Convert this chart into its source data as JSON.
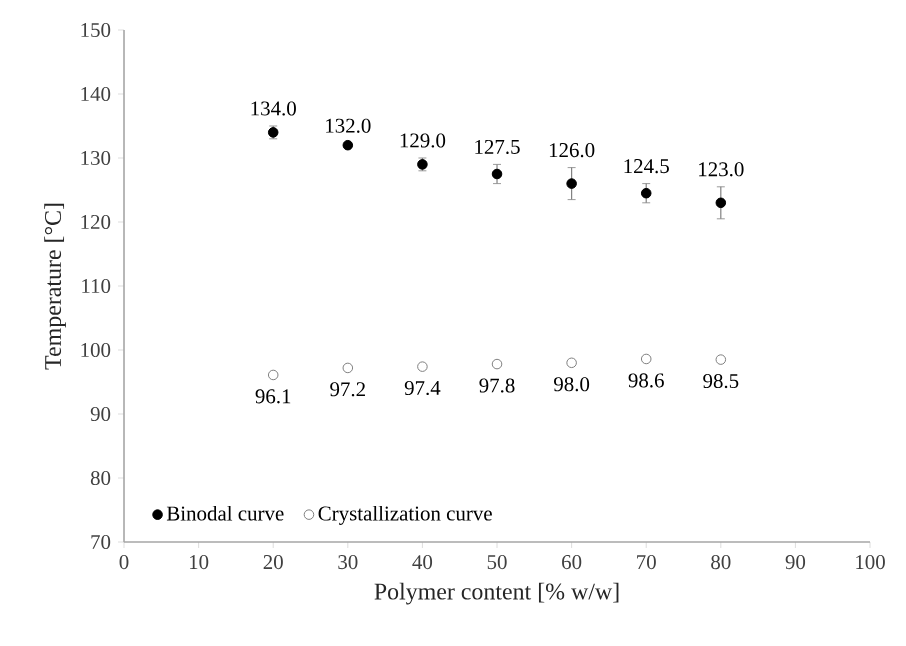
{
  "chart_data": {
    "type": "scatter",
    "xlabel": "Polymer content [% w/w]",
    "ylabel": "Temperature [°C]",
    "x": [
      20,
      30,
      40,
      50,
      60,
      70,
      80
    ],
    "series": [
      {
        "name": "Binodal curve",
        "color": "#000000",
        "values": [
          134.0,
          132.0,
          129.0,
          127.5,
          126.0,
          124.5,
          123.0
        ],
        "value_labels": [
          "134.0",
          "132.0",
          "129.0",
          "127.5",
          "126.0",
          "124.5",
          "123.0"
        ],
        "errors": [
          1,
          0.3,
          1,
          1.5,
          2.5,
          1.5,
          2.5
        ]
      },
      {
        "name": "Crystallization curve",
        "color": "#7f7f7f",
        "values": [
          96.1,
          97.2,
          97.4,
          97.8,
          98.0,
          98.6,
          98.5
        ],
        "value_labels": [
          "96.1",
          "97.2",
          "97.4",
          "97.8",
          "98.0",
          "98.6",
          "98.5"
        ]
      }
    ],
    "xlim": [
      0,
      100
    ],
    "xticks": [
      0,
      10,
      20,
      30,
      40,
      50,
      60,
      70,
      80,
      90,
      100
    ],
    "ylim": [
      70,
      150
    ],
    "yticks": [
      70,
      80,
      90,
      100,
      110,
      120,
      130,
      140,
      150
    ],
    "legend": "bottom left"
  }
}
